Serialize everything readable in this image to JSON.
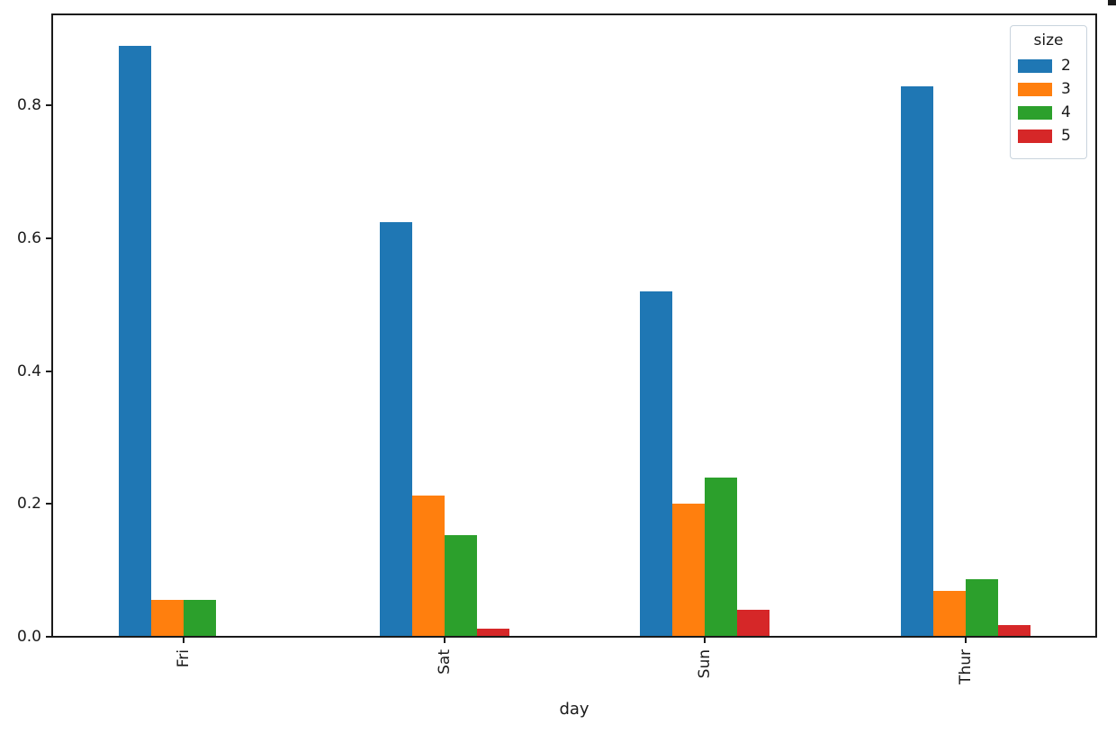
{
  "chart_data": {
    "type": "bar",
    "title": "",
    "xlabel": "day",
    "ylabel": "",
    "categories": [
      "Fri",
      "Sat",
      "Sun",
      "Thur"
    ],
    "series": [
      {
        "name": "2",
        "color": "#1f77b4",
        "values": [
          0.889,
          0.624,
          0.52,
          0.828
        ]
      },
      {
        "name": "3",
        "color": "#ff7f0e",
        "values": [
          0.056,
          0.212,
          0.2,
          0.069
        ]
      },
      {
        "name": "4",
        "color": "#2ca02c",
        "values": [
          0.056,
          0.153,
          0.24,
          0.086
        ]
      },
      {
        "name": "5",
        "color": "#d62728",
        "values": [
          0.0,
          0.012,
          0.04,
          0.017
        ]
      }
    ],
    "legend": {
      "title": "size",
      "position": "upper right"
    },
    "y_ticks": [
      "0.0",
      "0.2",
      "0.4",
      "0.6",
      "0.8"
    ],
    "y_tick_values": [
      0.0,
      0.2,
      0.4,
      0.6,
      0.8
    ],
    "ylim": [
      0,
      0.937
    ],
    "x_tick_rotation": 90,
    "grid": false
  }
}
